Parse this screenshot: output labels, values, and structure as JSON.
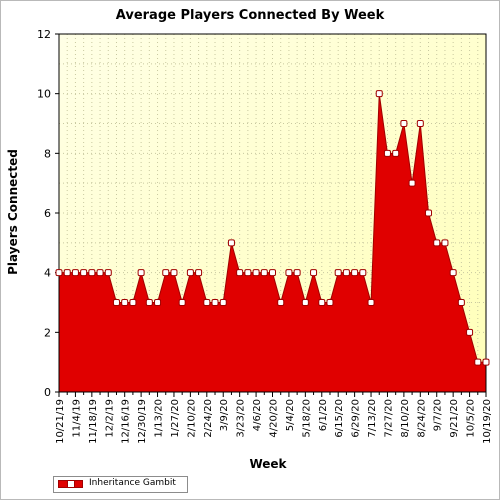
{
  "chart_data": {
    "type": "area",
    "title": "Average Players Connected By Week",
    "xlabel": "Week",
    "ylabel": "Players Connected",
    "ylim": [
      0,
      12
    ],
    "yticks": [
      "0",
      "2",
      "4",
      "6",
      "8",
      "10",
      "12"
    ],
    "grid": true,
    "legend_position": "bottom-left",
    "colors": {
      "fill": "#e00000",
      "line": "#a00000",
      "plot_bg_top": "#ffffcc",
      "plot_bg_bottom": "#ffffe8",
      "marker": "#ffffff"
    },
    "categories": [
      "10/21/19",
      "10/28/19",
      "11/4/19",
      "11/11/19",
      "11/18/19",
      "11/25/19",
      "12/2/19",
      "12/9/19",
      "12/16/19",
      "12/23/19",
      "12/30/19",
      "1/6/20",
      "1/13/20",
      "1/20/20",
      "1/27/20",
      "2/3/20",
      "2/10/20",
      "2/17/20",
      "2/24/20",
      "3/2/20",
      "3/9/20",
      "3/16/20",
      "3/23/20",
      "3/30/20",
      "4/6/20",
      "4/13/20",
      "4/20/20",
      "4/27/20",
      "5/4/20",
      "5/11/20",
      "5/18/20",
      "5/25/20",
      "6/1/20",
      "6/8/20",
      "6/15/20",
      "6/22/20",
      "6/29/20",
      "7/6/20",
      "7/13/20",
      "7/20/20",
      "7/27/20",
      "8/3/20",
      "8/10/20",
      "8/17/20",
      "8/24/20",
      "8/31/20",
      "9/7/20",
      "9/14/20",
      "9/21/20",
      "9/28/20",
      "10/5/20",
      "10/12/20",
      "10/19/20"
    ],
    "tick_labels": [
      "10/21/19",
      "11/4/19",
      "11/18/19",
      "12/2/19",
      "12/16/19",
      "12/30/19",
      "1/13/20",
      "1/27/20",
      "2/10/20",
      "2/24/20",
      "3/9/20",
      "3/23/20",
      "4/6/20",
      "4/20/20",
      "5/4/20",
      "5/18/20",
      "6/1/20",
      "6/15/20",
      "6/29/20",
      "7/13/20",
      "7/27/20",
      "8/10/20",
      "8/24/20",
      "9/7/20",
      "9/21/20",
      "10/5/20",
      "10/19/20"
    ],
    "series": [
      {
        "name": "Inheritance Gambit",
        "values": [
          4,
          4,
          4,
          4,
          4,
          4,
          4,
          3,
          3,
          3,
          4,
          3,
          3,
          4,
          4,
          3,
          4,
          4,
          3,
          3,
          3,
          5,
          4,
          4,
          4,
          4,
          4,
          3,
          4,
          4,
          3,
          4,
          3,
          3,
          4,
          4,
          4,
          4,
          3,
          10,
          8,
          8,
          9,
          7,
          9,
          6,
          5,
          5,
          4,
          3,
          2,
          1,
          1
        ]
      }
    ]
  }
}
